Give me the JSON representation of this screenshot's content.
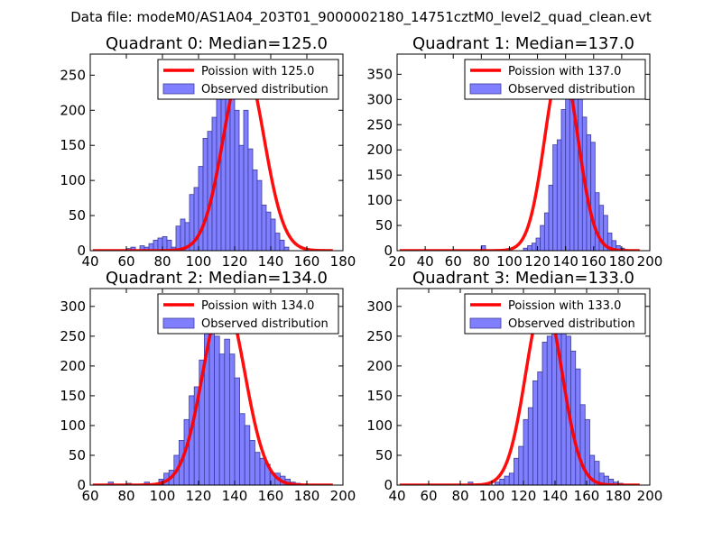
{
  "suptitle": "Data file: modeM0/AS1A04_203T01_9000002180_14751cztM0_level2_quad_clean.evt",
  "colors": {
    "bar_fill": "#7f7fff",
    "bar_edge": "#3c3c9a",
    "curve": "#ff0000"
  },
  "chart_data": [
    {
      "type": "bar",
      "title": "Quadrant 0: Median=125.0",
      "legend": [
        "Poission with 125.0",
        "Observed distribution"
      ],
      "legend_position": "top-right",
      "xlim": [
        40,
        180
      ],
      "ylim": [
        0,
        280
      ],
      "xticks": [
        40,
        60,
        80,
        100,
        120,
        140,
        160,
        180
      ],
      "yticks": [
        0,
        50,
        100,
        150,
        200,
        250
      ],
      "bin_width": 2.5,
      "bin_start": 60,
      "values": [
        3,
        5,
        0,
        7,
        5,
        10,
        15,
        18,
        20,
        15,
        5,
        35,
        45,
        40,
        80,
        90,
        120,
        160,
        170,
        190,
        250,
        260,
        225,
        250,
        200,
        150,
        200,
        145,
        115,
        100,
        65,
        55,
        45,
        25,
        15,
        5
      ],
      "curve_mean": 125.0,
      "curve_peak": 268
    },
    {
      "type": "bar",
      "title": "Quadrant 1: Median=137.0",
      "legend": [
        "Poission with 137.0",
        "Observed distribution"
      ],
      "legend_position": "top-right",
      "xlim": [
        20,
        200
      ],
      "ylim": [
        0,
        390
      ],
      "xticks": [
        20,
        40,
        60,
        80,
        100,
        120,
        140,
        160,
        180,
        200
      ],
      "yticks": [
        0,
        50,
        100,
        150,
        200,
        250,
        300,
        350
      ],
      "bin_width": 3,
      "bin_start": 110,
      "values": [
        5,
        10,
        15,
        25,
        50,
        75,
        130,
        210,
        220,
        280,
        310,
        360,
        325,
        310,
        265,
        230,
        215,
        115,
        90,
        70,
        35,
        20,
        10,
        5,
        2
      ],
      "extra_bins": [
        [
          80,
          10
        ]
      ],
      "curve_mean": 137.0,
      "curve_peak": 373
    },
    {
      "type": "bar",
      "title": "Quadrant 2: Median=134.0",
      "legend": [
        "Poission with 134.0",
        "Observed distribution"
      ],
      "legend_position": "top-right",
      "xlim": [
        60,
        200
      ],
      "ylim": [
        0,
        330
      ],
      "xticks": [
        60,
        80,
        100,
        120,
        140,
        160,
        180,
        200
      ],
      "yticks": [
        0,
        50,
        100,
        150,
        200,
        250,
        300
      ],
      "bin_width": 2.8,
      "bin_start": 98,
      "values": [
        10,
        20,
        25,
        50,
        75,
        110,
        150,
        165,
        210,
        280,
        300,
        250,
        220,
        245,
        220,
        180,
        120,
        100,
        75,
        55,
        45,
        35,
        20,
        20,
        15,
        10,
        5,
        3
      ],
      "extra_bins": [
        [
          70,
          5
        ],
        [
          80,
          3
        ],
        [
          90,
          5
        ]
      ],
      "curve_mean": 134.0,
      "curve_peak": 313
    },
    {
      "type": "bar",
      "title": "Quadrant 3: Median=133.0",
      "legend": [
        "Poission with 133.0",
        "Observed distribution"
      ],
      "legend_position": "top-right",
      "xlim": [
        40,
        200
      ],
      "ylim": [
        0,
        330
      ],
      "xticks": [
        40,
        60,
        80,
        100,
        120,
        140,
        160,
        180,
        200
      ],
      "yticks": [
        0,
        50,
        100,
        150,
        200,
        250,
        300
      ],
      "bin_width": 3,
      "bin_start": 102,
      "values": [
        5,
        10,
        15,
        20,
        45,
        65,
        110,
        130,
        175,
        190,
        240,
        250,
        310,
        260,
        300,
        250,
        225,
        195,
        135,
        110,
        50,
        40,
        20,
        15,
        10,
        5,
        3
      ],
      "extra_bins": [
        [
          85,
          5
        ]
      ],
      "curve_mean": 133.0,
      "curve_peak": 310
    }
  ]
}
